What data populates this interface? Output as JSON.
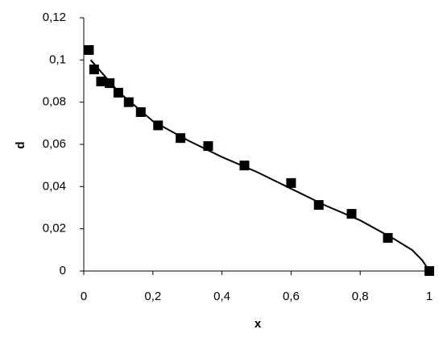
{
  "chart_data": {
    "type": "scatter",
    "xlabel": "x",
    "ylabel": "d",
    "xlim": [
      0,
      1
    ],
    "ylim": [
      0,
      0.12
    ],
    "xticks": [
      0,
      {
        "value": 0.2,
        "label": "0,2"
      },
      {
        "value": 0.4,
        "label": "0,4"
      },
      {
        "value": 0.6,
        "label": "0,6"
      },
      {
        "value": 0.8,
        "label": "0,8"
      },
      1
    ],
    "yticks": [
      0,
      {
        "value": 0.02,
        "label": "0,02"
      },
      {
        "value": 0.04,
        "label": "0,04"
      },
      {
        "value": 0.06,
        "label": "0,06"
      },
      {
        "value": 0.08,
        "label": "0,08"
      },
      {
        "value": 0.1,
        "label": "0,1"
      },
      {
        "value": 0.12,
        "label": "0,12"
      }
    ],
    "grid": false,
    "series": [
      {
        "style": "markers",
        "marker": "square",
        "color": "#000000",
        "x": [
          0.015,
          0.03,
          0.05,
          0.075,
          0.1,
          0.13,
          0.165,
          0.215,
          0.28,
          0.36,
          0.465,
          0.6,
          0.68,
          0.775,
          0.88,
          1.0
        ],
        "values": [
          0.1047,
          0.0955,
          0.0898,
          0.089,
          0.0845,
          0.08,
          0.0753,
          0.069,
          0.063,
          0.0592,
          0.05,
          0.0417,
          0.0313,
          0.0271,
          0.0157,
          0
        ]
      },
      {
        "style": "line",
        "color": "#000000",
        "x": [
          0.02,
          0.1,
          0.2,
          0.3,
          0.4,
          0.5,
          0.6,
          0.7,
          0.8,
          0.9,
          0.95,
          0.98,
          1.0
        ],
        "values": [
          0.1,
          0.085,
          0.071,
          0.062,
          0.054,
          0.047,
          0.039,
          0.031,
          0.024,
          0.015,
          0.01,
          0.005,
          0
        ]
      }
    ]
  }
}
